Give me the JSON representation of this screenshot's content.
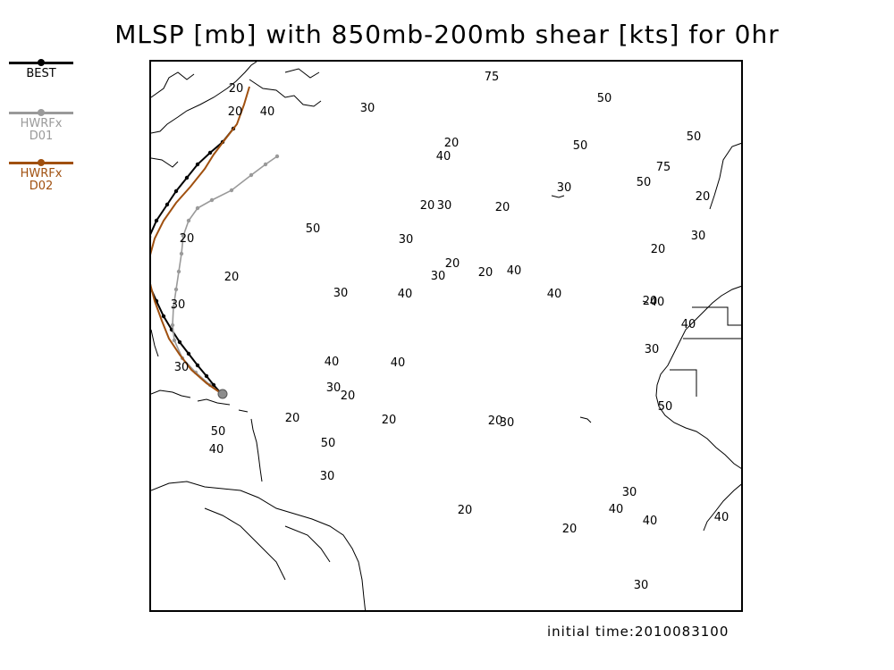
{
  "title": "MLSP [mb] with 850mb-200mb shear [kts] for 0hr",
  "footer": "initial time:2010083100",
  "legend": [
    {
      "label": "BEST",
      "color": "#000000"
    },
    {
      "label": "HWRFx\nD01",
      "color": "#9a9a9a"
    },
    {
      "label": "HWRFx\nD02",
      "color": "#a0500f"
    }
  ],
  "shear_labels": [
    "75",
    "50",
    "30",
    "20",
    "40",
    "50",
    "50",
    "20",
    "40",
    "20",
    "75",
    "50",
    "30",
    "20",
    "30",
    "50",
    "30",
    "30",
    "40",
    "20",
    "30",
    "20",
    "20",
    "40",
    "20",
    "20",
    "40",
    "30",
    "40",
    "40",
    "30",
    "20",
    "30",
    "50",
    "30",
    "40",
    "40",
    "20",
    "30",
    "20",
    "20",
    "30",
    "20",
    "50",
    "40",
    "50",
    "20",
    "30",
    "20",
    "20",
    "30",
    "40",
    "40",
    "40",
    "20",
    "30"
  ]
}
